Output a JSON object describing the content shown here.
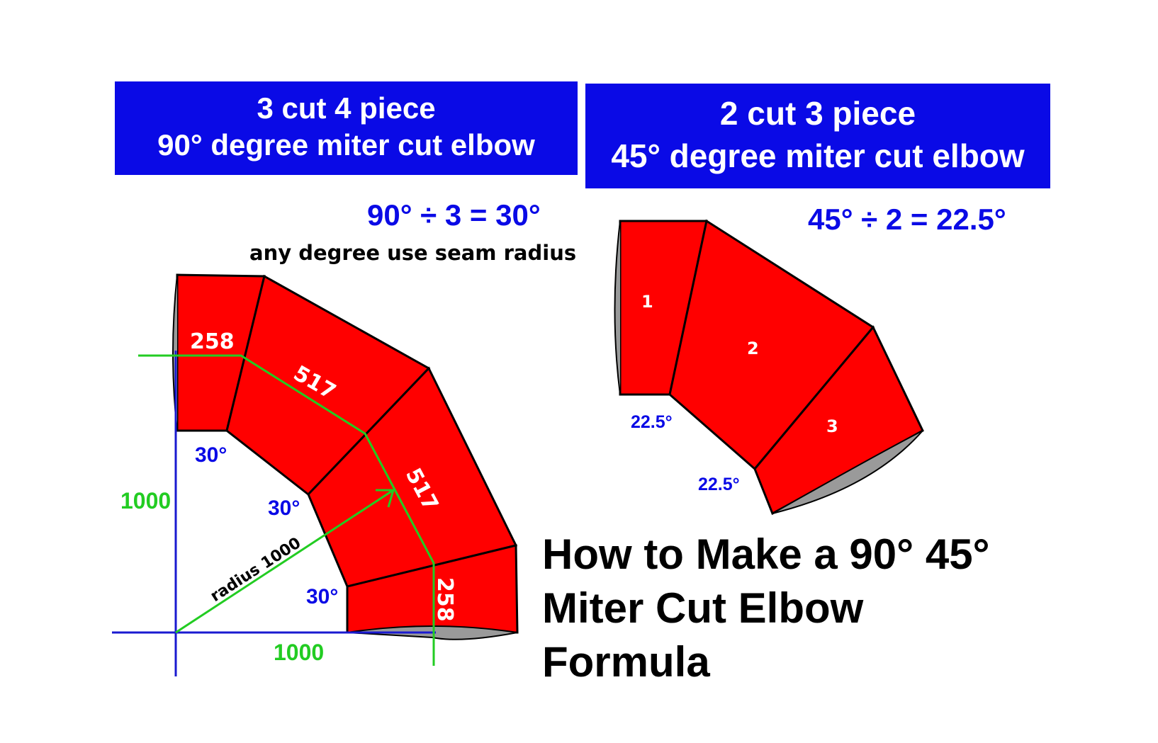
{
  "banners": {
    "left": {
      "line1": "3 cut 4 piece",
      "line2": "90° degree miter cut elbow"
    },
    "right": {
      "line1": "2 cut 3 piece",
      "line2": "45° degree miter cut elbow"
    }
  },
  "formulas": {
    "left": "90° ÷ 3 = 30°",
    "right": "45° ÷ 2 = 22.5°"
  },
  "note": "any degree use seam radius",
  "elbow90": {
    "segment_labels": [
      "258",
      "517",
      "517",
      "258"
    ],
    "angle_labels": [
      "30°",
      "30°",
      "30°"
    ],
    "dimensions": {
      "vertical": "1000",
      "horizontal": "1000",
      "radius": "radius 1000"
    }
  },
  "elbow45": {
    "piece_labels": [
      "1",
      "2",
      "3"
    ],
    "angle_labels": [
      "22.5°",
      "22.5°"
    ]
  },
  "headline": {
    "line1": "How to Make a 90° 45°",
    "line2": "Miter Cut Elbow",
    "line3": "Formula"
  },
  "colors": {
    "banner": "#0a0ae6",
    "pipe": "#ff0000",
    "dimension": "#22cc22",
    "axis": "#1a1ad0",
    "angle_text": "#0a0ae6"
  }
}
